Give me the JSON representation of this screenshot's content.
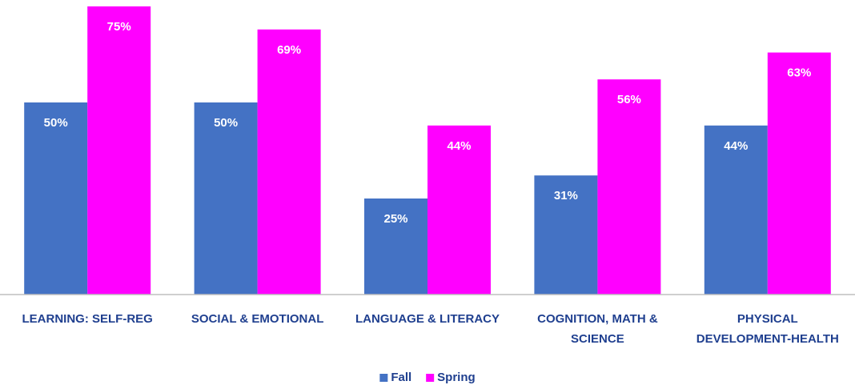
{
  "chart_data": {
    "type": "bar",
    "categories": [
      "LEARNING: SELF-REG",
      "SOCIAL & EMOTIONAL",
      "LANGUAGE & LITERACY",
      "COGNITION, MATH & SCIENCE",
      "PHYSICAL DEVELOPMENT-HEALTH"
    ],
    "series": [
      {
        "name": "Fall",
        "color": "#4472c4",
        "values": [
          50,
          50,
          25,
          31,
          44
        ],
        "value_labels": [
          "50%",
          "50%",
          "25%",
          "31%",
          "44%"
        ]
      },
      {
        "name": "Spring",
        "color": "#ff00ff",
        "values": [
          75,
          69,
          44,
          56,
          63
        ],
        "value_labels": [
          "75%",
          "69%",
          "44%",
          "56%",
          "63%"
        ]
      }
    ],
    "ylim": [
      0,
      75
    ],
    "legend": "bottom"
  }
}
